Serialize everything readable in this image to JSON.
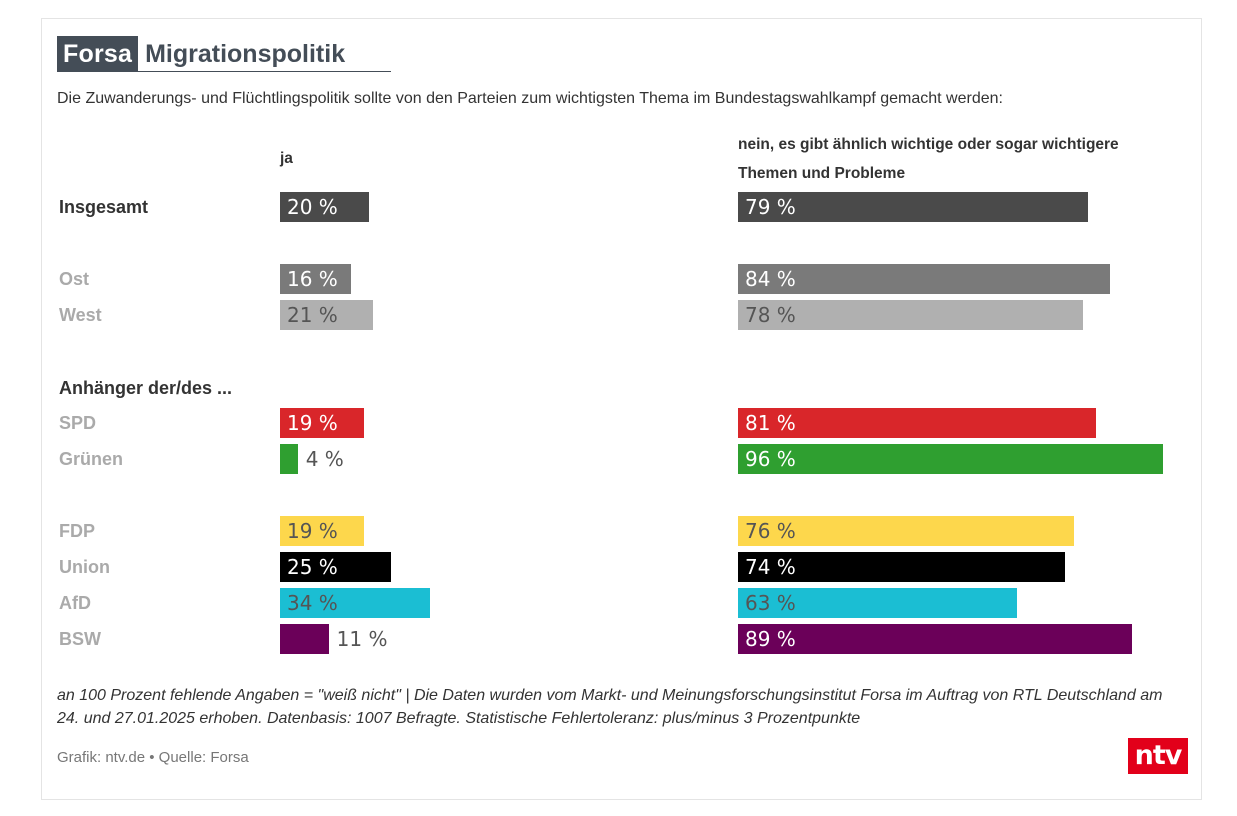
{
  "header": {
    "brand": "Forsa",
    "title": "Migrationspolitik",
    "subtitle": "Die Zuwanderungs- und Flüchtlingspolitik sollte von den Parteien zum wichtigsten Thema im Bundestagswahlkampf gemacht werden:"
  },
  "columns": {
    "yes": "ja",
    "no_line1": "nein, es gibt ähnlich wichtige oder sogar wichtigere",
    "no_line2": "Themen und Probleme"
  },
  "section_label": "Anhänger der/des ...",
  "chart_data": {
    "type": "bar",
    "categories": [
      "Insgesamt",
      "Ost",
      "West",
      "SPD",
      "Grünen",
      "FDP",
      "Union",
      "AfD",
      "BSW"
    ],
    "series": [
      {
        "name": "ja",
        "values": [
          20,
          16,
          21,
          19,
          4,
          19,
          25,
          34,
          11
        ]
      },
      {
        "name": "nein, es gibt ähnlich wichtige oder sogar wichtigere Themen und Probleme",
        "values": [
          79,
          84,
          78,
          81,
          96,
          76,
          74,
          63,
          89
        ]
      }
    ],
    "value_labels": {
      "ja": [
        "20 %",
        "16 %",
        "21 %",
        "19 %",
        "4 %",
        "19 %",
        "25 %",
        "34 %",
        "11 %"
      ],
      "nein": [
        "79 %",
        "84 %",
        "78 %",
        "81 %",
        "96 %",
        "76 %",
        "74 %",
        "63 %",
        "89 %"
      ]
    },
    "colors": [
      "#4a4a4a",
      "#7a7a7a",
      "#b0b0b0",
      "#d9262a",
      "#2f9f30",
      "#fdd74c",
      "#000000",
      "#1bbed3",
      "#6b0059"
    ],
    "label_colors": [
      "#333333",
      "#aaaaaa",
      "#aaaaaa",
      "#aaaaaa",
      "#aaaaaa",
      "#aaaaaa",
      "#aaaaaa",
      "#aaaaaa",
      "#aaaaaa"
    ],
    "text_colors": [
      "#ffffff",
      "#ffffff",
      "#555555",
      "#ffffff",
      "#ffffff",
      "#555555",
      "#ffffff",
      "#555555",
      "#ffffff"
    ],
    "xlim": [
      0,
      100
    ]
  },
  "footnote": "an 100 Prozent fehlende Angaben = \"weiß nicht\" | Die Daten wurden vom Markt- und Meinungsforschungsinstitut Forsa im Auftrag von RTL Deutschland am 24. und 27.01.2025 erhoben. Datenbasis: 1007 Befragte. Statistische Fehlertoleranz: plus/minus 3 Prozentpunkte",
  "source": "Grafik: ntv.de • Quelle: Forsa",
  "logo": "ntv"
}
